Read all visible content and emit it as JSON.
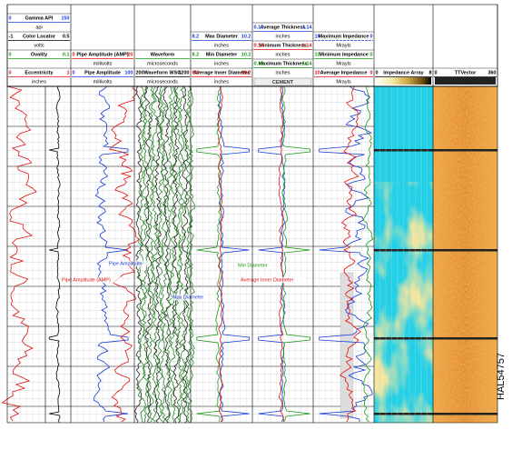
{
  "columns": [
    {
      "curves": [
        {
          "name": "Gamma API",
          "left": 0,
          "right": 150,
          "unit": "api",
          "color": "#1a3cd6"
        },
        {
          "name": "Color Locator",
          "left": -1,
          "right": 0.5,
          "unit": "volts",
          "color": "#000000"
        },
        {
          "name": "Ovality",
          "left": 0,
          "right": 0.1,
          "color": "#1a9a1a"
        },
        {
          "name": "Eccentricity",
          "left": 0,
          "right": 1,
          "unit": "inches",
          "color": "#e01010"
        }
      ]
    },
    {
      "curves": [
        {
          "name": "Pipe Amplitude (AMP)",
          "left": 0,
          "right": 20,
          "unit": "millivolts",
          "color": "#e01010"
        },
        {
          "name": "Pipe Amplitude",
          "left": 0,
          "right": 100,
          "unit": "millivolts",
          "color": "#1a3cd6"
        }
      ]
    },
    {
      "curves": [
        {
          "name": "Waveform",
          "unit": "microseconds",
          "color": "#1a9a1a"
        },
        {
          "name": "Waveform WSG",
          "left": 200,
          "right": 1200,
          "unit": "microseconds",
          "color": "#000000"
        }
      ]
    },
    {
      "curves": [
        {
          "name": "Max Diameter",
          "left": 8.2,
          "right": 10.2,
          "unit": "inches",
          "color": "#1a3cd6"
        },
        {
          "name": "Min Diameter",
          "left": 8.2,
          "right": 10.2,
          "unit": "inches",
          "color": "#1a9a1a"
        },
        {
          "name": "Average Inner Diameter",
          "left": 8.2,
          "right": 10.2,
          "unit": "inches",
          "color": "#e01010"
        }
      ]
    },
    {
      "curves": [
        {
          "name": "Average Thickness",
          "left": 0.14,
          "right": 1.14,
          "unit": "inches",
          "color": "#1a3cd6"
        },
        {
          "name": "Minimum Thickness",
          "left": 0.14,
          "right": 1.14,
          "unit": "inches",
          "color": "#e01010"
        },
        {
          "name": "Maximum Thickness",
          "left": 0.14,
          "right": 1.14,
          "unit": "inches",
          "color": "#1a9a1a"
        }
      ],
      "cement_label": "CEMENT"
    },
    {
      "curves": [
        {
          "name": "Maximum Impedance",
          "left": 10,
          "right": 0,
          "unit": "Mrayls",
          "color": "#1a3cd6"
        },
        {
          "name": "Minimum Impedance",
          "left": 10,
          "right": 0,
          "unit": "Mrayls",
          "color": "#1a9a1a"
        },
        {
          "name": "Average Impedance",
          "left": 10,
          "right": 0,
          "unit": "Mrayls",
          "color": "#e01010"
        }
      ]
    },
    {
      "curves": [
        {
          "name": "Impedance Array",
          "left": 0,
          "right": 8,
          "color": "#000000"
        }
      ]
    },
    {
      "curves": [
        {
          "name": "TTVector",
          "left": 0,
          "right": 360,
          "color": "#000000"
        }
      ]
    }
  ],
  "annotations": [
    {
      "text": "Pipe Amplitude",
      "color": "#1a3cd6"
    },
    {
      "text": "Pipe Amplitude (AMP)",
      "color": "#e01010"
    },
    {
      "text": "Min Diameter",
      "color": "#1a9a1a"
    },
    {
      "text": "Average Inner Diameter",
      "color": "#e01010"
    },
    {
      "text": "Max Diameter",
      "color": "#1a3cd6"
    }
  ],
  "figure_id": "HAL54757"
}
